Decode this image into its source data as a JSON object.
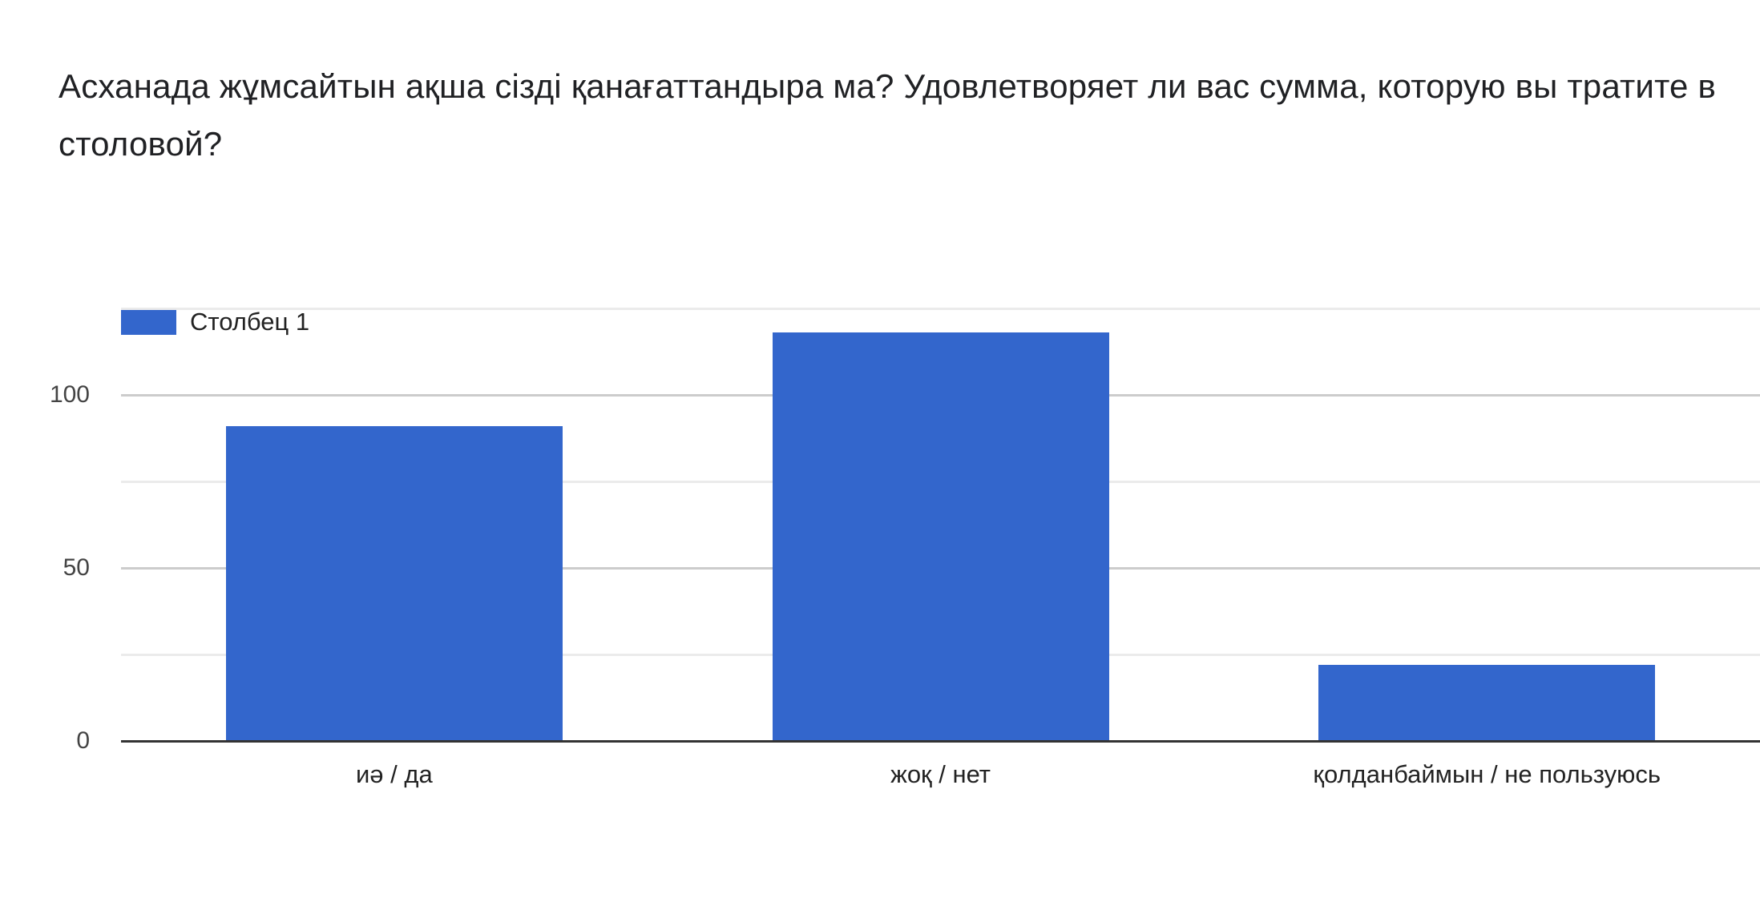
{
  "title": "Асханада жұмсайтын ақша сізді қанағаттандыра ма?  Удовлетворяет ли вас сумма, которую вы тратите в столовой?",
  "legend": {
    "series_label": "Столбец 1",
    "swatch_color": "#3366cc"
  },
  "y_axis": {
    "ticks": [
      "0",
      "50",
      "100"
    ]
  },
  "chart_data": {
    "type": "bar",
    "title": "Асханада жұмсайтын ақша сізді қанағаттандыра ма?  Удовлетворяет ли вас сумма, которую вы тратите в столовой?",
    "categories": [
      "иә / да",
      "жоқ / нет",
      "қолданбаймын / не пользуюсь"
    ],
    "series": [
      {
        "name": "Столбец 1",
        "values": [
          91,
          118,
          22
        ],
        "color": "#3366cc"
      }
    ],
    "xlabel": "",
    "ylabel": "",
    "ylim": [
      0,
      125
    ],
    "yticks": [
      0,
      50,
      100
    ],
    "minor_gridlines": [
      25,
      75,
      125
    ],
    "grid": true,
    "legend_position": "top-left"
  }
}
